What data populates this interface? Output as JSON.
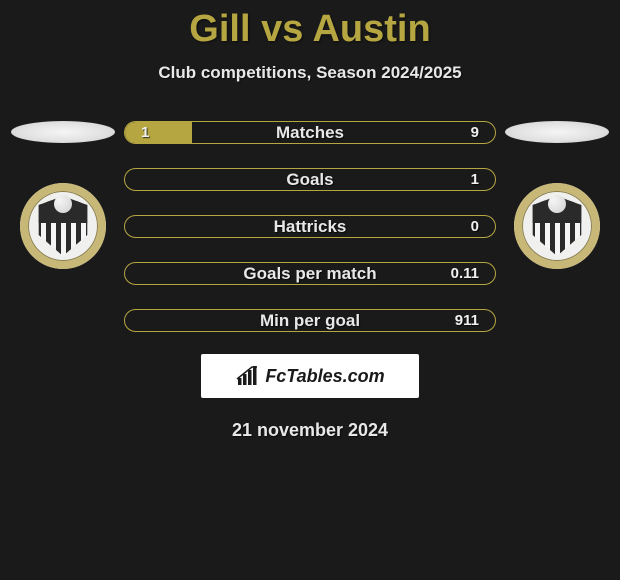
{
  "title": "Gill vs Austin",
  "subtitle": "Club competitions, Season 2024/2025",
  "date": "21 november 2024",
  "logo_text": "FcTables.com",
  "colors": {
    "accent": "#b5a642",
    "background": "#1a1a1a",
    "text_light": "#e8e8e8",
    "white": "#ffffff"
  },
  "bars": [
    {
      "label": "Matches",
      "left": "1",
      "right": "9",
      "left_pct": 18,
      "right_pct": 0
    },
    {
      "label": "Goals",
      "left": "",
      "right": "1",
      "left_pct": 0,
      "right_pct": 0
    },
    {
      "label": "Hattricks",
      "left": "",
      "right": "0",
      "left_pct": 0,
      "right_pct": 0
    },
    {
      "label": "Goals per match",
      "left": "",
      "right": "0.11",
      "left_pct": 0,
      "right_pct": 0
    },
    {
      "label": "Min per goal",
      "left": "",
      "right": "911",
      "left_pct": 0,
      "right_pct": 0
    }
  ],
  "crest_left": {
    "team": "notts-county"
  },
  "crest_right": {
    "team": "notts-county"
  }
}
